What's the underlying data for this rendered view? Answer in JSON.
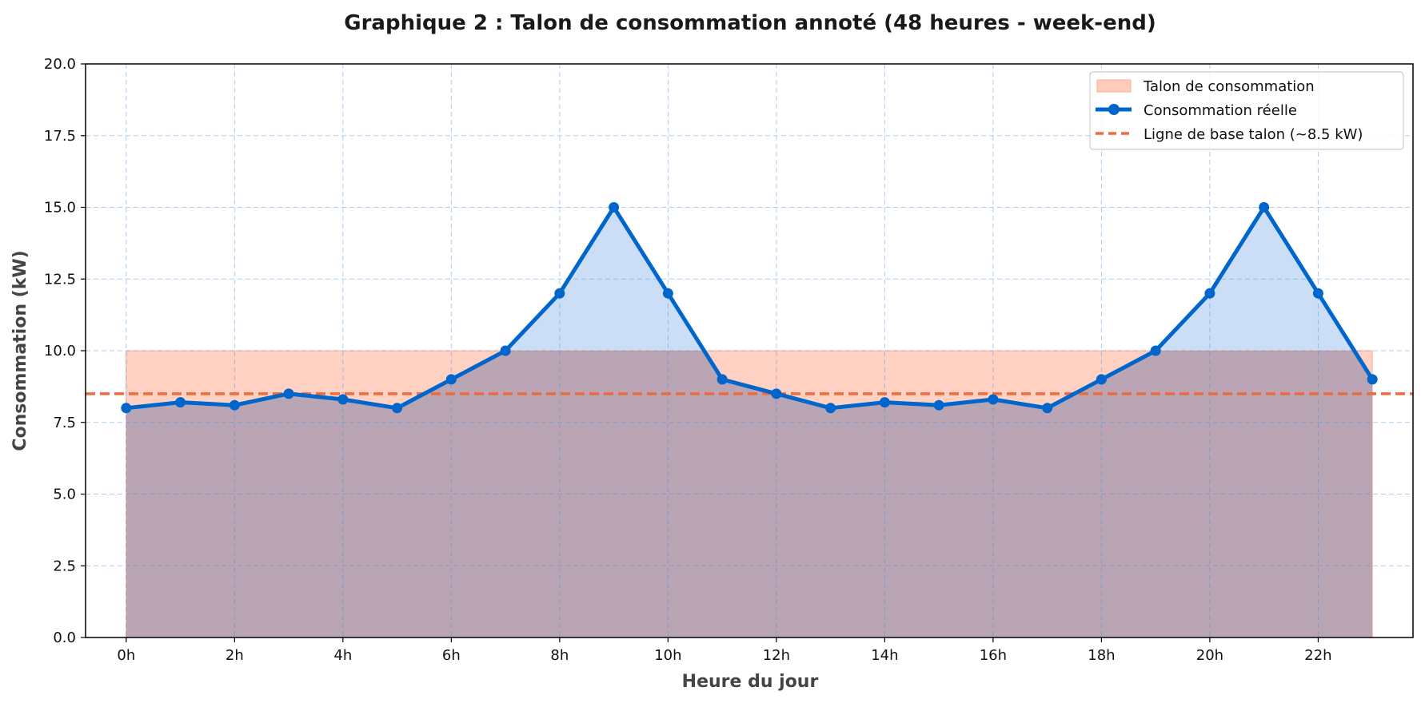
{
  "chart_data": {
    "type": "line",
    "title": "Graphique 2 : Talon de consommation annoté (48 heures - week-end)",
    "xlabel": "Heure du jour",
    "ylabel": "Consommation (kW)",
    "xlim": [
      -0.75,
      23.75
    ],
    "ylim": [
      0,
      20
    ],
    "x": [
      0,
      1,
      2,
      3,
      4,
      5,
      6,
      7,
      8,
      9,
      10,
      11,
      12,
      13,
      14,
      15,
      16,
      17,
      18,
      19,
      20,
      21,
      22,
      23
    ],
    "x_ticks": [
      0,
      2,
      4,
      6,
      8,
      10,
      12,
      14,
      16,
      18,
      20,
      22
    ],
    "x_tick_labels": [
      "0h",
      "2h",
      "4h",
      "6h",
      "8h",
      "10h",
      "12h",
      "14h",
      "16h",
      "18h",
      "20h",
      "22h"
    ],
    "y_ticks": [
      0,
      2.5,
      5,
      7.5,
      10,
      12.5,
      15,
      17.5,
      20
    ],
    "y_tick_labels": [
      "0.0",
      "2.5",
      "5.0",
      "7.5",
      "10.0",
      "12.5",
      "15.0",
      "17.5",
      "20.0"
    ],
    "grid": true,
    "legend_position": "top-right",
    "series": [
      {
        "name": "Talon de consommation",
        "kind": "band",
        "y_low": 0,
        "y_high": 10,
        "x_range": [
          0,
          23
        ],
        "color": "#fdab8f"
      },
      {
        "name": "Consommation réelle",
        "kind": "line",
        "values": [
          8.0,
          8.2,
          8.1,
          8.5,
          8.3,
          8.0,
          9.0,
          10.0,
          12.0,
          15.0,
          12.0,
          9.0,
          8.5,
          8.0,
          8.2,
          8.1,
          8.3,
          8.0,
          9.0,
          10.0,
          12.0,
          15.0,
          12.0,
          9.0
        ],
        "color": "#0066cc",
        "fill_color": "#a8c8ee"
      },
      {
        "name": "Ligne de base talon (~8.5 kW)",
        "kind": "hline",
        "value": 8.5,
        "color": "#f06a3c"
      }
    ]
  }
}
